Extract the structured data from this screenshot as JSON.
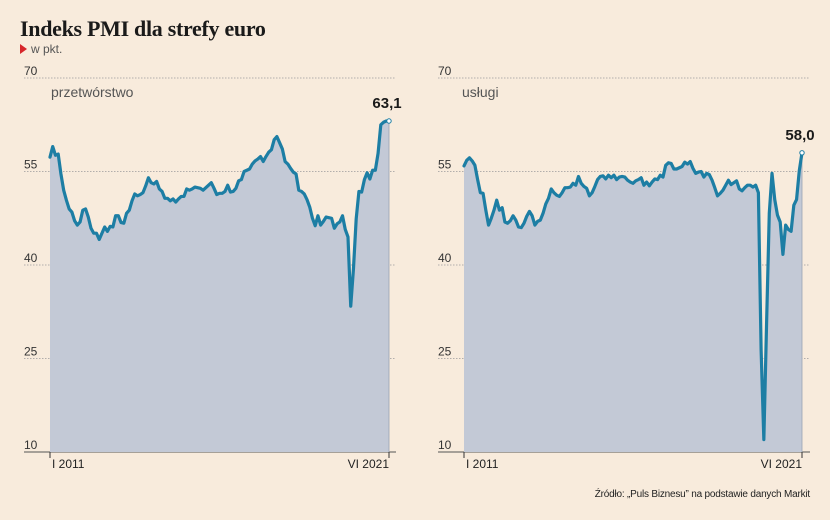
{
  "header": {
    "title": "Indeks PMI dla strefy euro",
    "unit": "w pkt."
  },
  "source": "Źródło: „Puls Biznesu” na podstawie danych Markit",
  "colors": {
    "background": "#f8ebdc",
    "area_fill": "#c3c9d6",
    "line": "#1d7ea4",
    "grid": "#9a9a9a",
    "unit_marker": "#d7262b"
  },
  "chart_data": [
    {
      "type": "area",
      "title": "przetwórstwo",
      "xlabel": "",
      "ylabel": "",
      "x_ticks": [
        "I 2011",
        "VI 2021"
      ],
      "x_range": [
        "2011-01",
        "2021-06"
      ],
      "ylim": [
        10,
        70
      ],
      "y_ticks": [
        10,
        25,
        40,
        55,
        70
      ],
      "grid": true,
      "end_label": "63,1",
      "series": [
        {
          "values": [
            57.3,
            59.0,
            57.6,
            57.8,
            54.6,
            52.0,
            50.4,
            49.0,
            48.5,
            47.1,
            46.4,
            46.9,
            48.8,
            49.0,
            47.7,
            45.9,
            45.1,
            45.1,
            44.1,
            45.1,
            46.1,
            45.4,
            46.2,
            46.1,
            47.9,
            47.9,
            46.8,
            46.7,
            48.3,
            48.8,
            50.3,
            51.4,
            51.1,
            51.3,
            51.6,
            52.7,
            54.0,
            53.2,
            53.0,
            53.4,
            52.2,
            51.8,
            50.7,
            50.7,
            50.3,
            50.6,
            50.1,
            50.6,
            51.0,
            51.0,
            52.2,
            52.0,
            52.2,
            52.5,
            52.4,
            52.3,
            52.0,
            52.4,
            52.8,
            53.2,
            52.3,
            51.3,
            51.5,
            51.5,
            51.8,
            52.8,
            51.7,
            51.8,
            52.3,
            53.5,
            53.7,
            55.0,
            55.2,
            55.4,
            56.2,
            56.7,
            57.0,
            57.4,
            56.6,
            57.4,
            58.1,
            58.5,
            60.1,
            60.6,
            59.6,
            58.6,
            56.6,
            56.2,
            55.5,
            54.9,
            54.6,
            52.0,
            51.8,
            51.4,
            50.5,
            49.3,
            47.5,
            46.3,
            47.9,
            46.4,
            47.0,
            47.7,
            47.6,
            47.5,
            45.9,
            46.6,
            46.9,
            47.9,
            45.7,
            44.5,
            33.4,
            39.4,
            47.4,
            51.8,
            51.7,
            53.7,
            54.8,
            53.8,
            55.2,
            55.2,
            57.9,
            62.5,
            62.9,
            63.1,
            63.1
          ]
        }
      ]
    },
    {
      "type": "area",
      "title": "usługi",
      "xlabel": "",
      "ylabel": "",
      "x_ticks": [
        "I 2011",
        "VI 2021"
      ],
      "x_range": [
        "2011-01",
        "2021-06"
      ],
      "ylim": [
        10,
        70
      ],
      "y_ticks": [
        10,
        25,
        40,
        55,
        70
      ],
      "grid": true,
      "end_label": "58,0",
      "series": [
        {
          "values": [
            55.9,
            56.8,
            57.2,
            56.7,
            56.0,
            53.7,
            51.6,
            51.5,
            48.8,
            46.4,
            47.5,
            48.8,
            50.4,
            48.8,
            49.2,
            46.9,
            46.7,
            47.1,
            47.9,
            47.2,
            46.1,
            46.0,
            46.7,
            47.8,
            48.6,
            47.9,
            46.4,
            47.0,
            47.2,
            48.3,
            49.8,
            50.7,
            52.2,
            51.6,
            51.2,
            51.0,
            51.6,
            52.4,
            52.4,
            52.5,
            53.1,
            52.8,
            54.2,
            53.1,
            52.6,
            52.3,
            51.1,
            51.6,
            52.6,
            53.7,
            54.2,
            54.3,
            53.8,
            54.4,
            54.0,
            54.4,
            53.7,
            54.1,
            54.2,
            54.1,
            53.6,
            53.3,
            53.1,
            53.5,
            53.7,
            54.0,
            52.8,
            53.3,
            52.7,
            53.3,
            53.8,
            53.7,
            54.4,
            54.1,
            56.0,
            56.4,
            56.3,
            55.4,
            55.4,
            55.6,
            55.8,
            56.5,
            56.2,
            56.6,
            55.5,
            54.7,
            54.9,
            55.0,
            54.1,
            54.7,
            54.5,
            53.6,
            52.4,
            51.1,
            51.5,
            52.0,
            52.8,
            53.6,
            52.9,
            53.2,
            53.5,
            52.2,
            51.9,
            52.4,
            52.8,
            52.8,
            52.5,
            52.8,
            51.6,
            26.4,
            12.0,
            30.5,
            48.3,
            54.7,
            50.5,
            48.0,
            46.9,
            41.7,
            46.4,
            45.7,
            45.4,
            49.6,
            50.5,
            55.1,
            58.0
          ]
        }
      ]
    }
  ]
}
